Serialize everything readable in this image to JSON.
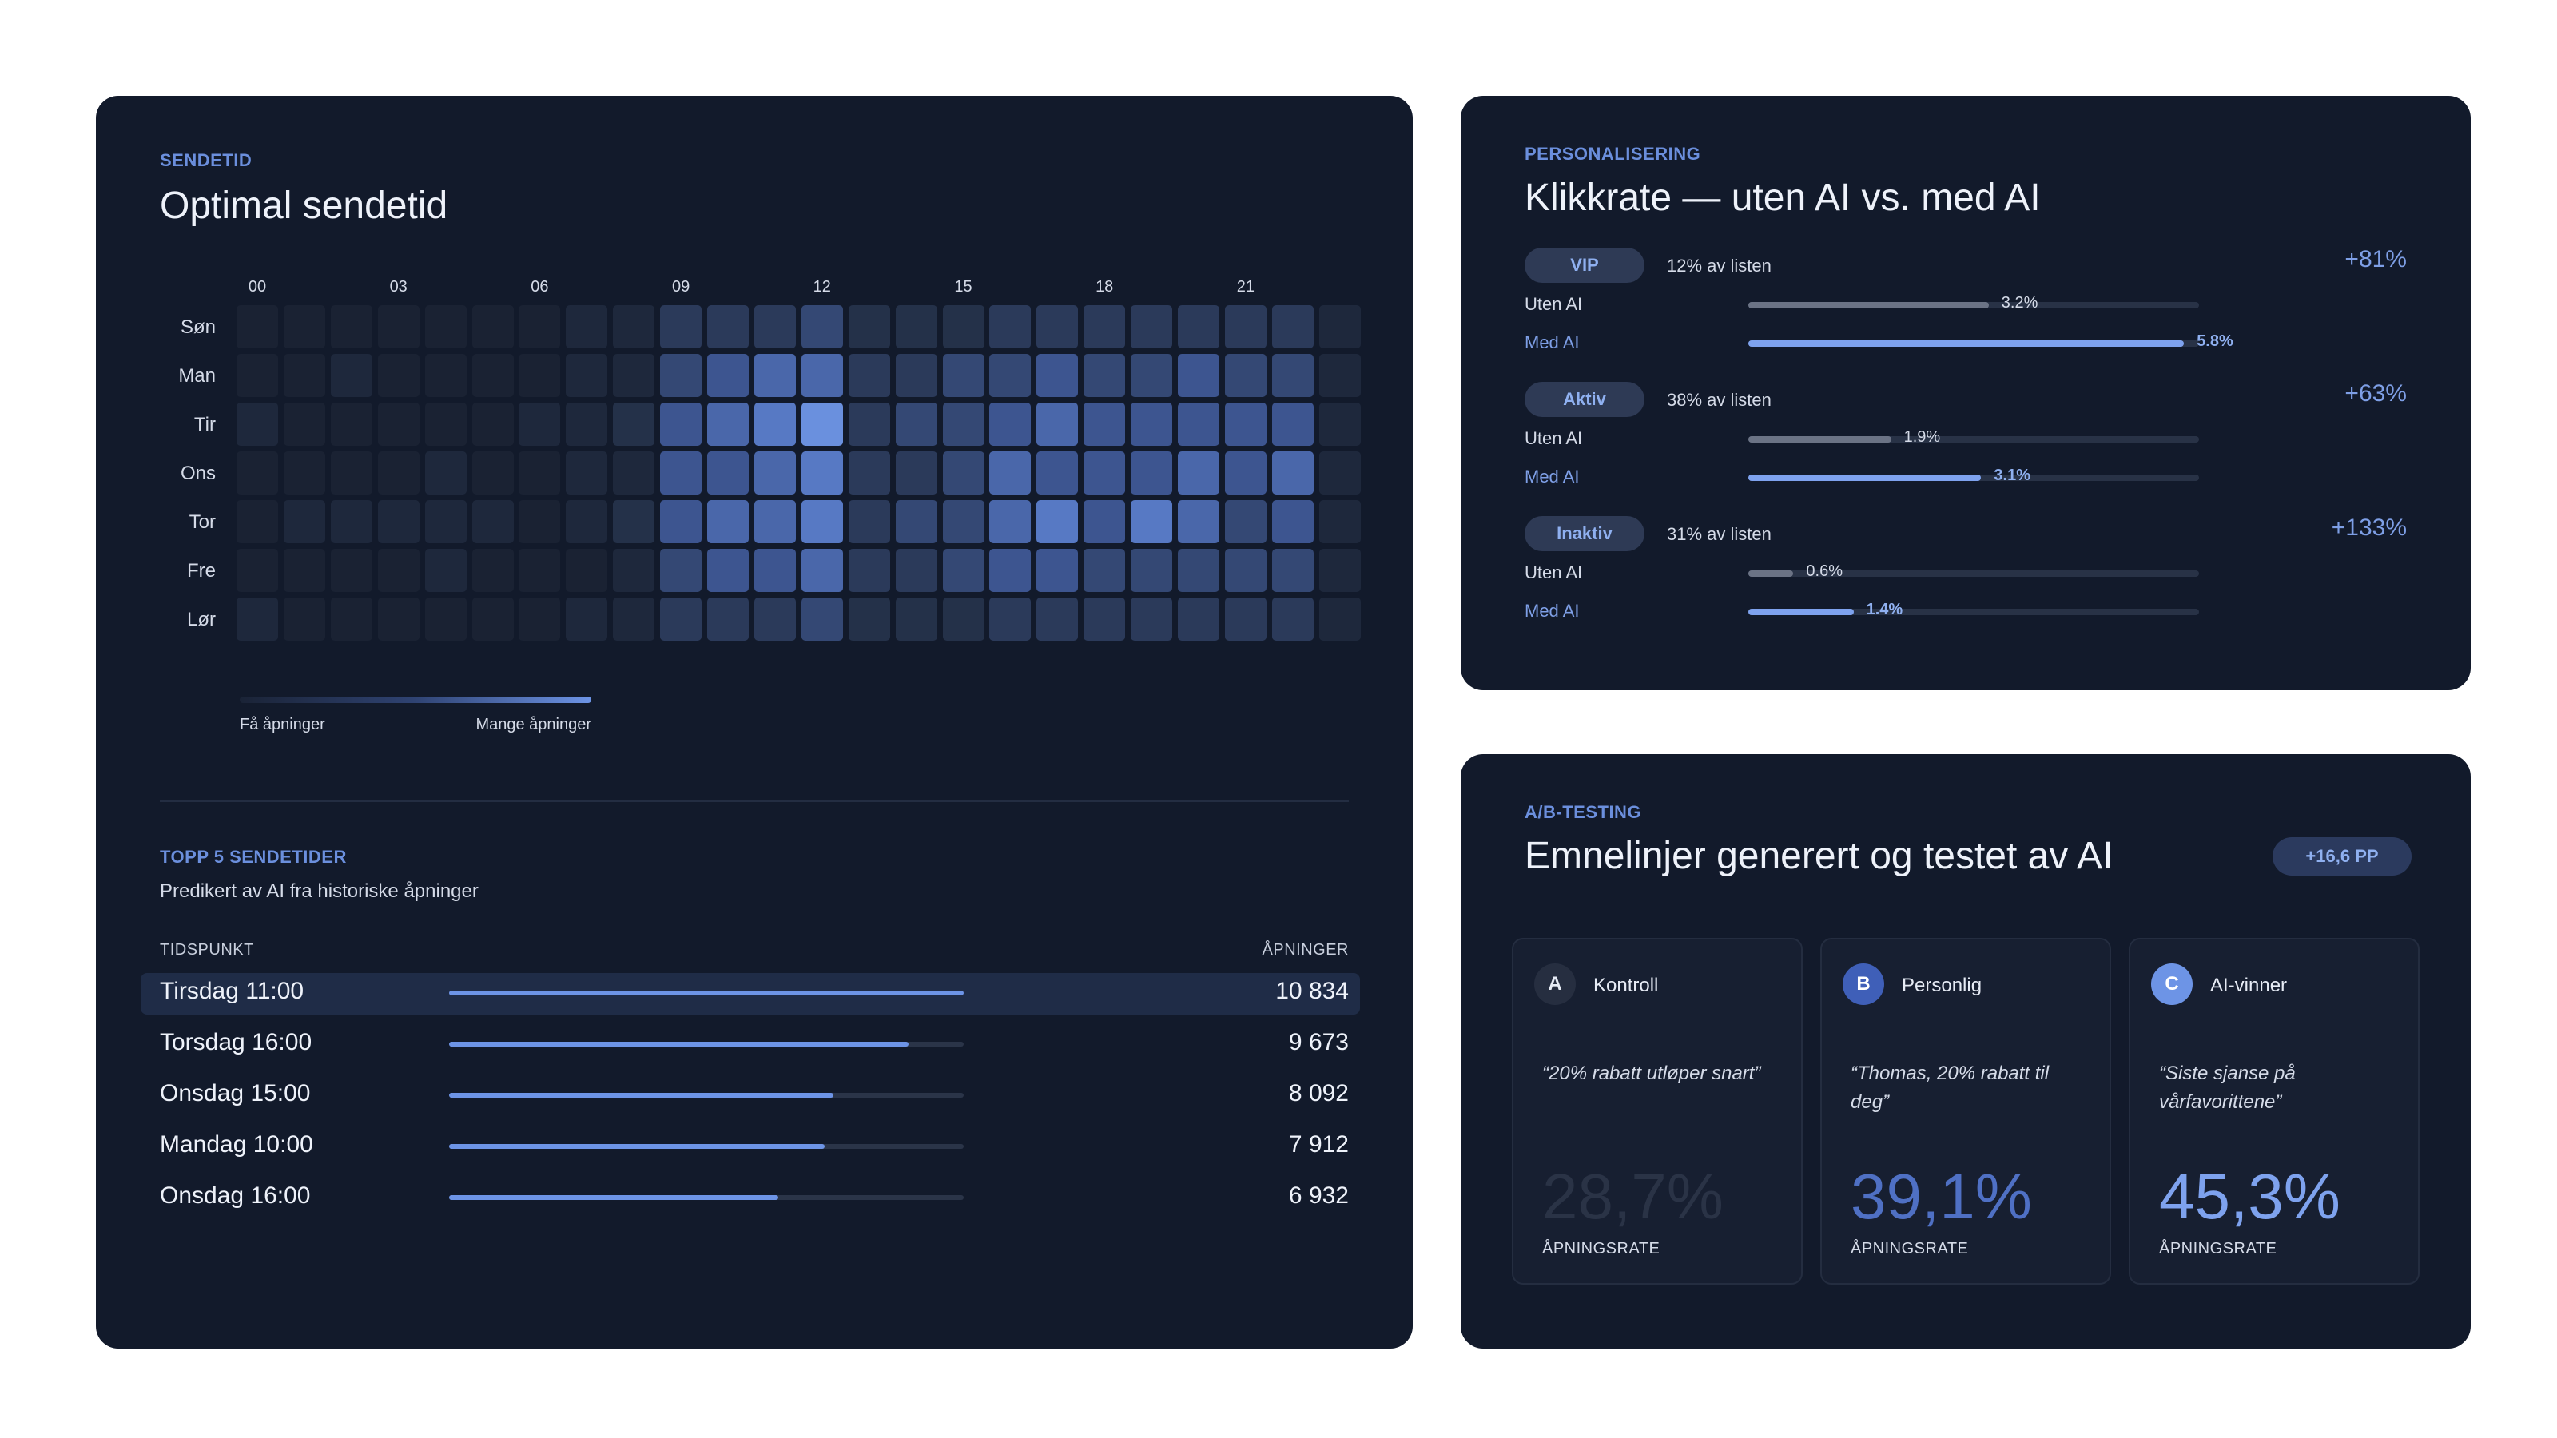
{
  "sendetid": {
    "eyebrow": "SENDETID",
    "title": "Optimal sendetid",
    "hours": [
      "00",
      "03",
      "06",
      "09",
      "12",
      "15",
      "18",
      "21"
    ],
    "days": [
      "Søn",
      "Man",
      "Tir",
      "Ons",
      "Tor",
      "Fre",
      "Lør"
    ],
    "heatmap_levels": [
      [
        1,
        1,
        1,
        1,
        1,
        1,
        1,
        2,
        2,
        4,
        4,
        4,
        5,
        3,
        3,
        3,
        4,
        4,
        4,
        4,
        4,
        4,
        4,
        2
      ],
      [
        1,
        1,
        2,
        1,
        1,
        1,
        1,
        2,
        2,
        5,
        6,
        7,
        7,
        4,
        4,
        5,
        5,
        6,
        5,
        5,
        6,
        5,
        5,
        2
      ],
      [
        2,
        1,
        1,
        1,
        1,
        1,
        2,
        2,
        3,
        6,
        7,
        8,
        9,
        4,
        5,
        5,
        6,
        7,
        6,
        6,
        6,
        6,
        6,
        2
      ],
      [
        1,
        1,
        1,
        1,
        2,
        1,
        1,
        2,
        2,
        6,
        6,
        7,
        8,
        4,
        4,
        5,
        7,
        6,
        6,
        6,
        7,
        6,
        7,
        2
      ],
      [
        1,
        2,
        2,
        2,
        2,
        2,
        1,
        2,
        3,
        6,
        7,
        7,
        8,
        4,
        5,
        5,
        7,
        8,
        6,
        8,
        7,
        5,
        6,
        2
      ],
      [
        1,
        1,
        1,
        1,
        2,
        1,
        1,
        1,
        2,
        5,
        6,
        6,
        7,
        4,
        4,
        5,
        6,
        6,
        5,
        5,
        5,
        5,
        5,
        2
      ],
      [
        2,
        1,
        1,
        1,
        1,
        1,
        1,
        2,
        2,
        4,
        4,
        4,
        5,
        3,
        3,
        3,
        4,
        4,
        4,
        4,
        4,
        4,
        4,
        2
      ]
    ],
    "legend_low": "Få åpninger",
    "legend_high": "Mange åpninger",
    "top5": {
      "eyebrow": "TOPP 5 SENDETIDER",
      "subtitle": "Predikert av AI fra historiske åpninger",
      "col_time": "TIDSPUNKT",
      "col_opens": "ÅPNINGER",
      "rows": [
        {
          "time": "Tirsdag 11:00",
          "opens": "10 834",
          "value": 10834
        },
        {
          "time": "Torsdag 16:00",
          "opens": "9 673",
          "value": 9673
        },
        {
          "time": "Onsdag 15:00",
          "opens": "8 092",
          "value": 8092
        },
        {
          "time": "Mandag 10:00",
          "opens": "7 912",
          "value": 7912
        },
        {
          "time": "Onsdag 16:00",
          "opens": "6 932",
          "value": 6932
        }
      ]
    }
  },
  "personalisering": {
    "eyebrow": "PERSONALISERING",
    "title": "Klikkrate — uten AI vs. med AI",
    "segments": [
      {
        "badge": "VIP",
        "share": "12% av listen",
        "lift": "+81%",
        "without_label": "Uten AI",
        "without_value": "3.2%",
        "without": 3.2,
        "with_label": "Med AI",
        "with_value": "5.8%",
        "with": 5.8
      },
      {
        "badge": "Aktiv",
        "share": "38% av listen",
        "lift": "+63%",
        "without_label": "Uten AI",
        "without_value": "1.9%",
        "without": 1.9,
        "with_label": "Med AI",
        "with_value": "3.1%",
        "with": 3.1
      },
      {
        "badge": "Inaktiv",
        "share": "31% av listen",
        "lift": "+133%",
        "without_label": "Uten AI",
        "without_value": "0.6%",
        "without": 0.6,
        "with_label": "Med AI",
        "with_value": "1.4%",
        "with": 1.4
      }
    ]
  },
  "ab": {
    "eyebrow": "A/B-TESTING",
    "title": "Emnelinjer generert og testet av AI",
    "badge": "+16,6 PP",
    "variants": [
      {
        "letter": "A",
        "name": "Kontroll",
        "quote": "“20% rabatt utløper snart”",
        "rate": "28,7%",
        "rate_label": "ÅPNINGSRATE"
      },
      {
        "letter": "B",
        "name": "Personlig",
        "quote": "“Thomas, 20% rabatt til deg”",
        "rate": "39,1%",
        "rate_label": "ÅPNINGSRATE"
      },
      {
        "letter": "C",
        "name": "AI-vinner",
        "quote": "“Siste sjanse på vårfavorittene”",
        "rate": "45,3%",
        "rate_label": "ÅPNINGSRATE"
      }
    ]
  },
  "colors": {
    "card_bg": "#121a2b",
    "accent": "#6d94e6",
    "accent_soft": "#8fb0f0"
  }
}
